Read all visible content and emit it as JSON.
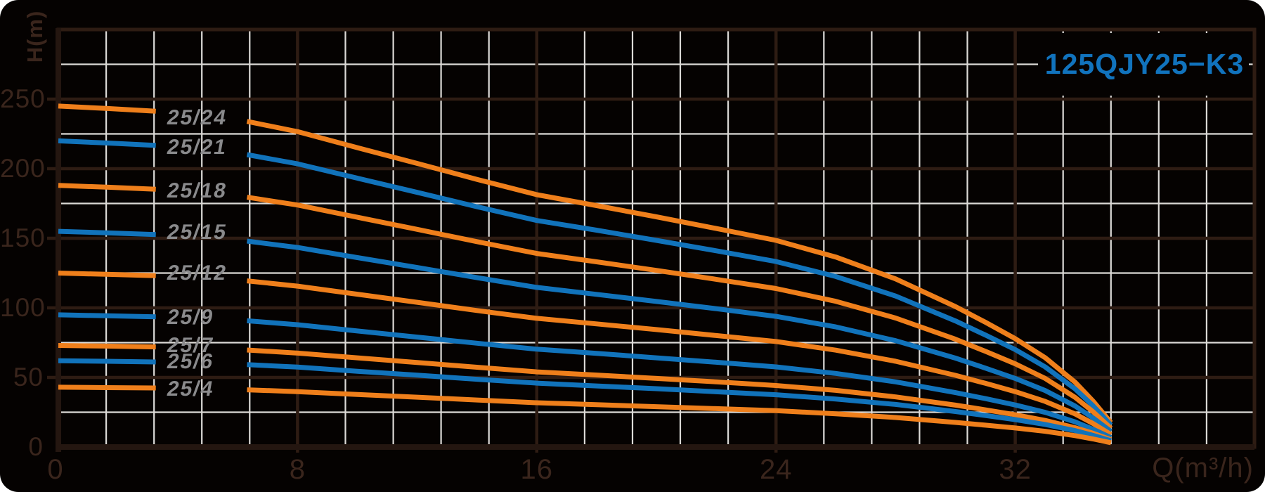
{
  "chart_data": {
    "type": "line",
    "title": "125QJY25−K3",
    "xlabel": "Q(m³/h)",
    "ylabel": "H(m)",
    "x_tick_labels": [
      "0",
      "8",
      "16",
      "24",
      "32"
    ],
    "x_tick_values": [
      0,
      8,
      16,
      24,
      32
    ],
    "y_tick_labels": [
      "0",
      "50",
      "100",
      "150",
      "200",
      "250"
    ],
    "y_tick_values": [
      0,
      50,
      100,
      150,
      200,
      250
    ],
    "xlim": [
      0,
      40
    ],
    "ylim": [
      0,
      300
    ],
    "x_minor_step": 1.6,
    "y_minor_step": 25,
    "grid": "major-dark-brown, minor-light-gray",
    "legend_position": "inline-curve-labels",
    "label_gap_q": [
      3.26,
      6.31
    ],
    "q_samples": [
      0,
      1.6,
      3.26,
      6.31,
      8,
      10,
      12,
      14,
      16,
      18,
      20,
      22,
      24,
      26,
      28,
      30,
      31,
      32,
      33,
      34,
      34.6,
      35.2
    ],
    "series": [
      {
        "label": "25/24",
        "color_key": "orange",
        "h_samples": [
          245.0,
          243.3,
          241.3,
          234.0,
          226.6,
          215.1,
          203.8,
          192.3,
          181.3,
          173.5,
          165.4,
          157.0,
          148.5,
          136.5,
          120.8,
          100.9,
          89.7,
          77.9,
          64.2,
          46.6,
          33.1,
          17.6
        ]
      },
      {
        "label": "25/21",
        "color_key": "blue",
        "h_samples": [
          220.0,
          218.5,
          216.7,
          210.1,
          203.5,
          193.2,
          183.0,
          172.7,
          162.8,
          155.8,
          148.5,
          141.0,
          133.3,
          122.5,
          108.5,
          90.6,
          80.5,
          70.0,
          57.6,
          41.8,
          29.7,
          15.8
        ]
      },
      {
        "label": "25/18",
        "color_key": "orange",
        "h_samples": [
          188.0,
          186.7,
          185.2,
          179.5,
          173.9,
          165.1,
          156.4,
          147.6,
          139.1,
          133.1,
          126.9,
          120.5,
          113.9,
          104.7,
          92.7,
          77.5,
          68.8,
          59.8,
          49.3,
          35.7,
          25.4,
          13.5
        ]
      },
      {
        "label": "25/15",
        "color_key": "blue",
        "h_samples": [
          155.0,
          153.9,
          152.7,
          148.0,
          143.4,
          136.1,
          129.0,
          121.7,
          114.7,
          109.7,
          104.6,
          99.4,
          93.9,
          86.3,
          76.4,
          63.9,
          56.7,
          49.3,
          40.6,
          29.5,
          20.9,
          11.2
        ]
      },
      {
        "label": "25/12",
        "color_key": "orange",
        "h_samples": [
          125.0,
          124.1,
          123.1,
          119.4,
          115.6,
          109.8,
          104.0,
          98.1,
          92.5,
          88.5,
          84.4,
          80.1,
          75.8,
          69.6,
          61.6,
          51.5,
          45.8,
          39.8,
          32.8,
          23.8,
          16.9,
          9.0
        ]
      },
      {
        "label": "25/9",
        "color_key": "blue",
        "h_samples": [
          95.0,
          94.3,
          93.6,
          90.7,
          87.9,
          83.4,
          79.0,
          74.6,
          70.3,
          67.3,
          64.1,
          60.9,
          57.6,
          52.9,
          46.8,
          39.1,
          34.8,
          30.2,
          24.9,
          18.1,
          12.8,
          6.8
        ]
      },
      {
        "label": "25/7",
        "color_key": "orange",
        "h_samples": [
          73.0,
          72.5,
          71.9,
          69.7,
          67.5,
          64.1,
          60.7,
          57.3,
          54.0,
          51.7,
          49.3,
          46.8,
          44.2,
          40.7,
          36.0,
          30.1,
          26.7,
          23.2,
          19.1,
          13.9,
          9.9,
          5.3
        ]
      },
      {
        "label": "25/6",
        "color_key": "blue",
        "h_samples": [
          62.0,
          61.6,
          61.1,
          59.2,
          57.4,
          54.4,
          51.6,
          48.7,
          45.9,
          43.9,
          41.9,
          39.7,
          37.6,
          34.5,
          30.6,
          25.5,
          22.7,
          19.7,
          16.2,
          11.8,
          8.4,
          4.5
        ]
      },
      {
        "label": "25/4",
        "color_key": "orange",
        "h_samples": [
          43.0,
          42.7,
          42.4,
          41.1,
          39.8,
          37.8,
          35.8,
          33.8,
          31.8,
          30.4,
          29.0,
          27.6,
          26.1,
          23.9,
          21.2,
          17.7,
          15.7,
          13.7,
          11.3,
          8.2,
          5.8,
          3.1
        ]
      }
    ],
    "colors": {
      "background": "#050201",
      "orange": "#EF7F1B",
      "blue": "#1173BB",
      "title_blue": "#1173BD",
      "series_label_gray": "#8A8A8C",
      "grid_minor": "#DCDAD7",
      "grid_major": "#2E1C13",
      "axis": "#241610",
      "tick_label": "#3A251C"
    }
  }
}
